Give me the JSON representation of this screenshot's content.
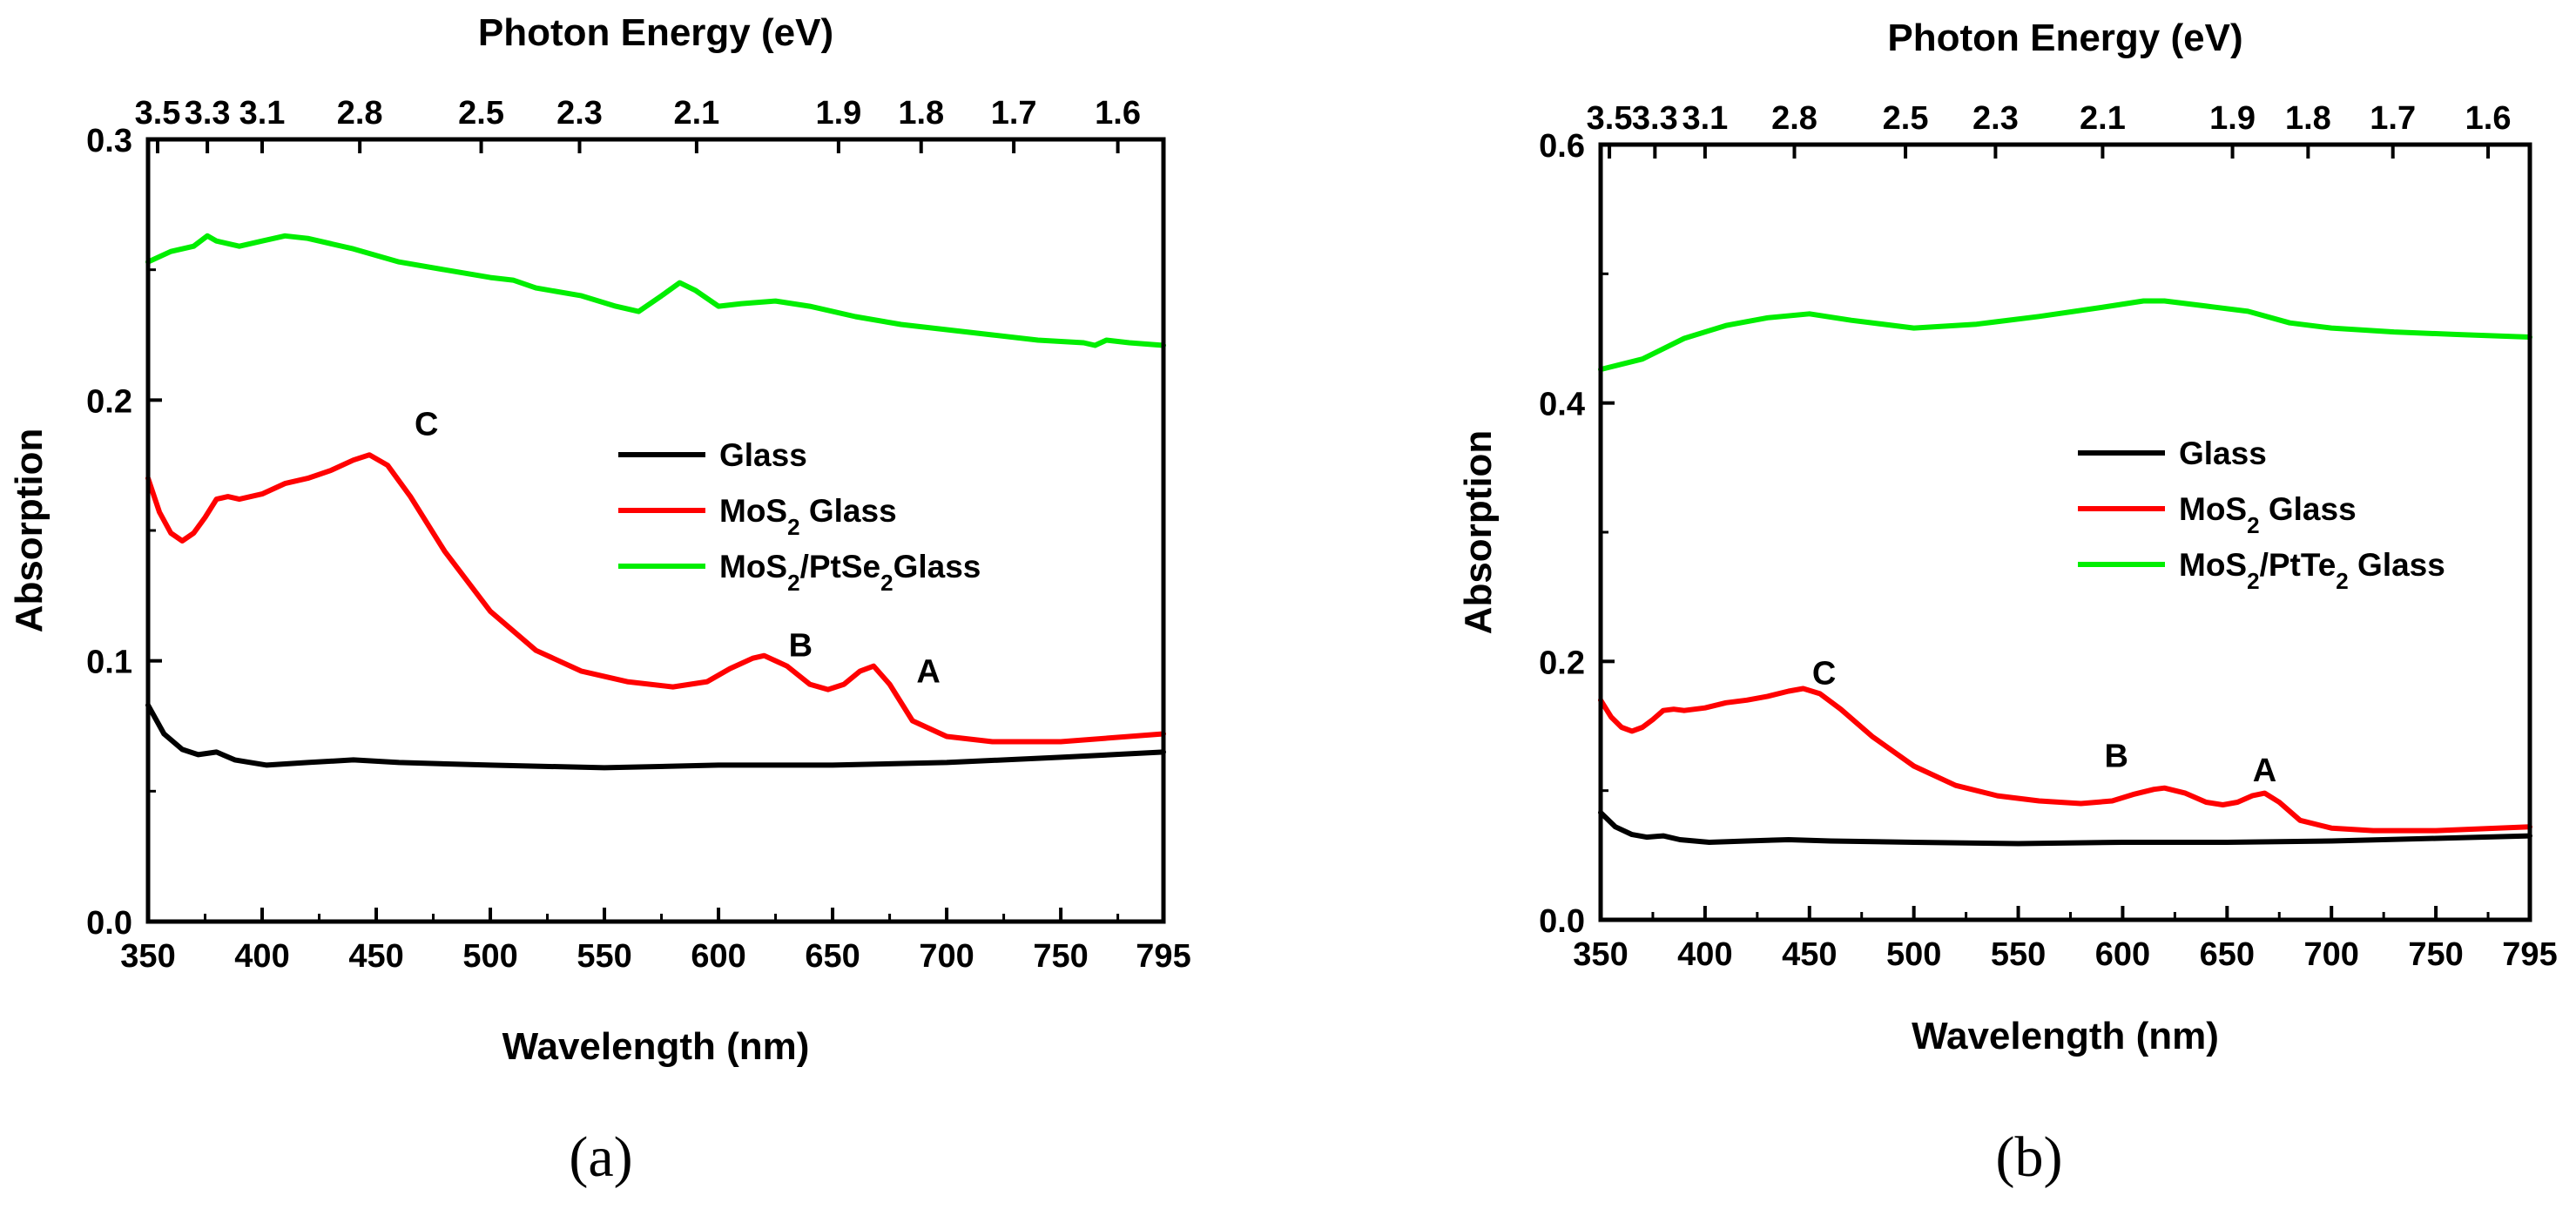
{
  "chart_data": [
    {
      "type": "line",
      "panel_label": "(a)",
      "xlabel": "Wavelength (nm)",
      "ylabel": "Absorption",
      "top_xlabel": "Photon Energy (eV)",
      "xlim": [
        350,
        795
      ],
      "ylim": [
        0,
        0.3
      ],
      "x_ticks": [
        350,
        400,
        450,
        500,
        550,
        600,
        650,
        700,
        750,
        795
      ],
      "x_tick_labels": [
        "350",
        "400",
        "450",
        "500",
        "550",
        "600",
        "650",
        "700",
        "750",
        "795"
      ],
      "y_ticks": [
        0,
        0.1,
        0.2,
        0.3
      ],
      "y_tick_labels": [
        "0.0",
        "0.1",
        "0.2",
        "0.3"
      ],
      "top_ticks_wavelength": [
        354.2,
        376.0,
        400.0,
        442.8,
        496.0,
        539.1,
        590.4,
        652.6,
        688.8,
        729.4,
        775.0
      ],
      "top_tick_labels": [
        "3.5",
        "3.3",
        "3.1",
        "2.8",
        "2.5",
        "2.3",
        "2.1",
        "1.9",
        "1.8",
        "1.7",
        "1.6"
      ],
      "legend": [
        {
          "label": "Glass",
          "color": "#000000"
        },
        {
          "label": "MoS",
          "sub": "2",
          "rest": " Glass",
          "color": "#ff0000"
        },
        {
          "label": "MoS",
          "sub": "2",
          "rest": "/PtSe",
          "sub2": "2",
          "rest2": "Glass",
          "color": "#00ee00"
        }
      ],
      "annotations": [
        {
          "text": "C",
          "x": 472,
          "y": 0.191
        },
        {
          "text": "B",
          "x": 636,
          "y": 0.106
        },
        {
          "text": "A",
          "x": 692,
          "y": 0.096
        }
      ],
      "series": [
        {
          "name": "Glass",
          "color": "#000000",
          "x": [
            350,
            357,
            365,
            372,
            380,
            388,
            395,
            402,
            420,
            440,
            460,
            500,
            550,
            600,
            650,
            700,
            750,
            795
          ],
          "y": [
            0.083,
            0.072,
            0.066,
            0.064,
            0.065,
            0.062,
            0.061,
            0.06,
            0.061,
            0.062,
            0.061,
            0.06,
            0.059,
            0.06,
            0.06,
            0.061,
            0.063,
            0.065
          ]
        },
        {
          "name": "MoS2 Glass",
          "color": "#ff0000",
          "x": [
            350,
            355,
            360,
            365,
            370,
            375,
            380,
            385,
            390,
            400,
            410,
            420,
            430,
            440,
            447,
            455,
            465,
            480,
            500,
            520,
            540,
            560,
            580,
            595,
            605,
            615,
            620,
            630,
            640,
            648,
            655,
            662,
            668,
            675,
            685,
            700,
            720,
            750,
            795
          ],
          "y": [
            0.17,
            0.157,
            0.149,
            0.146,
            0.149,
            0.155,
            0.162,
            0.163,
            0.162,
            0.164,
            0.168,
            0.17,
            0.173,
            0.177,
            0.179,
            0.175,
            0.163,
            0.142,
            0.119,
            0.104,
            0.096,
            0.092,
            0.09,
            0.092,
            0.097,
            0.101,
            0.102,
            0.098,
            0.091,
            0.089,
            0.091,
            0.096,
            0.098,
            0.091,
            0.077,
            0.071,
            0.069,
            0.069,
            0.072
          ]
        },
        {
          "name": "MoS2/PtSe2 Glass",
          "color": "#00ee00",
          "x": [
            350,
            360,
            370,
            376,
            380,
            390,
            400,
            410,
            420,
            440,
            460,
            480,
            500,
            510,
            520,
            540,
            555,
            565,
            575,
            583,
            590,
            600,
            610,
            625,
            640,
            660,
            680,
            700,
            720,
            740,
            760,
            765,
            770,
            780,
            795
          ],
          "y": [
            0.253,
            0.257,
            0.259,
            0.263,
            0.261,
            0.259,
            0.261,
            0.263,
            0.262,
            0.258,
            0.253,
            0.25,
            0.247,
            0.246,
            0.243,
            0.24,
            0.236,
            0.234,
            0.24,
            0.245,
            0.242,
            0.236,
            0.237,
            0.238,
            0.236,
            0.232,
            0.229,
            0.227,
            0.225,
            0.223,
            0.222,
            0.221,
            0.223,
            0.222,
            0.221
          ]
        }
      ]
    },
    {
      "type": "line",
      "panel_label": "(b)",
      "xlabel": "Wavelength (nm)",
      "ylabel": "Absorption",
      "top_xlabel": "Photon Energy (eV)",
      "xlim": [
        350,
        795
      ],
      "ylim": [
        0,
        0.6
      ],
      "x_ticks": [
        350,
        400,
        450,
        500,
        550,
        600,
        650,
        700,
        750,
        795
      ],
      "x_tick_labels": [
        "350",
        "400",
        "450",
        "500",
        "550",
        "600",
        "650",
        "700",
        "750",
        "795"
      ],
      "y_ticks": [
        0,
        0.2,
        0.4,
        0.6
      ],
      "y_tick_labels": [
        "0.0",
        "0.2",
        "0.4",
        "0.6"
      ],
      "top_ticks_wavelength": [
        354.2,
        376.0,
        400.0,
        442.8,
        496.0,
        539.1,
        590.4,
        652.6,
        688.8,
        729.4,
        775.0
      ],
      "top_tick_labels": [
        "3.5",
        "3.3",
        "3.1",
        "2.8",
        "2.5",
        "2.3",
        "2.1",
        "1.9",
        "1.8",
        "1.7",
        "1.6"
      ],
      "legend": [
        {
          "label": "Glass",
          "color": "#000000"
        },
        {
          "label": "MoS",
          "sub": "2",
          "rest": " Glass",
          "color": "#ff0000"
        },
        {
          "label": "MoS",
          "sub": "2",
          "rest": "/PtTe",
          "sub2": "2",
          "rest2": " Glass",
          "color": "#00ee00"
        }
      ],
      "annotations": [
        {
          "text": "C",
          "x": 457,
          "y": 0.191
        },
        {
          "text": "B",
          "x": 597,
          "y": 0.127
        },
        {
          "text": "A",
          "x": 668,
          "y": 0.116
        }
      ],
      "series": [
        {
          "name": "Glass",
          "color": "#000000",
          "x": [
            350,
            357,
            365,
            372,
            380,
            388,
            395,
            402,
            420,
            440,
            460,
            500,
            550,
            600,
            650,
            700,
            750,
            795
          ],
          "y": [
            0.083,
            0.072,
            0.066,
            0.064,
            0.065,
            0.062,
            0.061,
            0.06,
            0.061,
            0.062,
            0.061,
            0.06,
            0.059,
            0.06,
            0.06,
            0.061,
            0.063,
            0.065
          ]
        },
        {
          "name": "MoS2 Glass",
          "color": "#ff0000",
          "x": [
            350,
            355,
            360,
            365,
            370,
            375,
            380,
            385,
            390,
            400,
            410,
            420,
            430,
            440,
            447,
            455,
            465,
            480,
            500,
            520,
            540,
            560,
            580,
            595,
            605,
            615,
            620,
            630,
            640,
            648,
            655,
            662,
            668,
            675,
            685,
            700,
            720,
            750,
            795
          ],
          "y": [
            0.17,
            0.157,
            0.149,
            0.146,
            0.149,
            0.155,
            0.162,
            0.163,
            0.162,
            0.164,
            0.168,
            0.17,
            0.173,
            0.177,
            0.179,
            0.175,
            0.163,
            0.142,
            0.119,
            0.104,
            0.096,
            0.092,
            0.09,
            0.092,
            0.097,
            0.101,
            0.102,
            0.098,
            0.091,
            0.089,
            0.091,
            0.096,
            0.098,
            0.091,
            0.077,
            0.071,
            0.069,
            0.069,
            0.072
          ]
        },
        {
          "name": "MoS2/PtTe2 Glass",
          "color": "#00ee00",
          "x": [
            350,
            370,
            390,
            410,
            430,
            450,
            470,
            500,
            530,
            560,
            590,
            610,
            620,
            640,
            660,
            680,
            700,
            730,
            760,
            795
          ],
          "y": [
            0.426,
            0.434,
            0.45,
            0.46,
            0.466,
            0.469,
            0.464,
            0.458,
            0.461,
            0.467,
            0.474,
            0.479,
            0.479,
            0.475,
            0.471,
            0.462,
            0.458,
            0.455,
            0.453,
            0.451
          ]
        }
      ]
    }
  ]
}
